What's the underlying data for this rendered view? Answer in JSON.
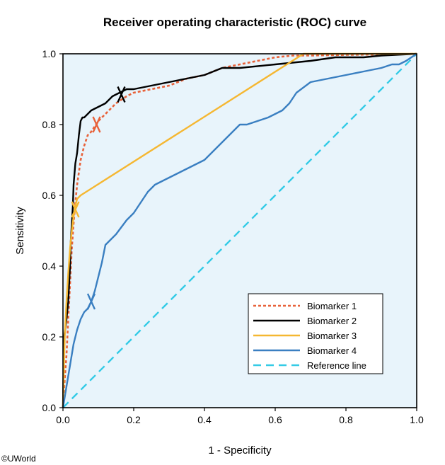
{
  "chart_data": {
    "type": "line",
    "title": "Receiver operating characteristic (ROC) curve",
    "xlabel": "1 - Specificity",
    "ylabel": "Sensitivity",
    "xlim": [
      0,
      1
    ],
    "ylim": [
      0,
      1
    ],
    "xticks": [
      "0.0",
      "0.2",
      "0.4",
      "0.6",
      "0.8",
      "1.0"
    ],
    "yticks": [
      "0.0",
      "0.2",
      "0.4",
      "0.6",
      "0.8",
      "1.0"
    ],
    "grid": false,
    "legend_position": "bottom-right",
    "plot_background": "#e8f4fb",
    "series": [
      {
        "name": "Biomarker 1",
        "color": "#e8623a",
        "style": "dotted",
        "x": [
          0,
          0.005,
          0.01,
          0.015,
          0.02,
          0.025,
          0.03,
          0.035,
          0.04,
          0.05,
          0.06,
          0.07,
          0.08,
          0.1,
          0.12,
          0.15,
          0.18,
          0.2,
          0.25,
          0.3,
          0.35,
          0.4,
          0.45,
          0.5,
          0.55,
          0.6,
          0.65,
          0.7,
          0.8,
          0.9,
          1.0
        ],
        "y": [
          0,
          0.08,
          0.15,
          0.25,
          0.35,
          0.45,
          0.52,
          0.58,
          0.63,
          0.7,
          0.74,
          0.77,
          0.78,
          0.81,
          0.83,
          0.86,
          0.88,
          0.89,
          0.9,
          0.91,
          0.93,
          0.94,
          0.96,
          0.97,
          0.98,
          0.99,
          0.995,
          0.995,
          0.997,
          0.998,
          1.0
        ],
        "marker_x": 0.095,
        "marker_y": 0.8
      },
      {
        "name": "Biomarker 2",
        "color": "#000000",
        "style": "solid",
        "x": [
          0,
          0.003,
          0.006,
          0.01,
          0.015,
          0.02,
          0.022,
          0.025,
          0.028,
          0.03,
          0.035,
          0.04,
          0.045,
          0.05,
          0.055,
          0.06,
          0.07,
          0.08,
          0.1,
          0.12,
          0.14,
          0.16,
          0.18,
          0.2,
          0.25,
          0.3,
          0.35,
          0.4,
          0.45,
          0.5,
          0.6,
          0.7,
          0.77,
          0.85,
          0.9,
          1.0
        ],
        "y": [
          0,
          0.2,
          0.22,
          0.25,
          0.3,
          0.4,
          0.47,
          0.52,
          0.57,
          0.63,
          0.69,
          0.72,
          0.77,
          0.81,
          0.82,
          0.82,
          0.83,
          0.84,
          0.85,
          0.86,
          0.88,
          0.89,
          0.9,
          0.9,
          0.91,
          0.92,
          0.93,
          0.94,
          0.96,
          0.96,
          0.97,
          0.98,
          0.99,
          0.99,
          0.995,
          1.0
        ],
        "marker_x": 0.165,
        "marker_y": 0.885
      },
      {
        "name": "Biomarker 3",
        "color": "#f5b731",
        "style": "solid",
        "x": [
          0,
          0.005,
          0.01,
          0.015,
          0.02,
          0.025,
          0.03,
          0.035,
          0.04,
          0.05,
          0.68,
          0.85,
          1.0
        ],
        "y": [
          0,
          0.2,
          0.3,
          0.38,
          0.45,
          0.5,
          0.54,
          0.57,
          0.59,
          0.6,
          1.0,
          1.0,
          1.0
        ],
        "marker_x": 0.035,
        "marker_y": 0.56
      },
      {
        "name": "Biomarker 4",
        "color": "#3a7fc1",
        "style": "solid",
        "x": [
          0,
          0.01,
          0.02,
          0.03,
          0.04,
          0.05,
          0.06,
          0.07,
          0.08,
          0.09,
          0.1,
          0.11,
          0.12,
          0.15,
          0.18,
          0.2,
          0.22,
          0.24,
          0.26,
          0.28,
          0.3,
          0.32,
          0.34,
          0.36,
          0.38,
          0.4,
          0.42,
          0.44,
          0.46,
          0.48,
          0.5,
          0.52,
          0.55,
          0.58,
          0.6,
          0.62,
          0.64,
          0.66,
          0.7,
          0.75,
          0.8,
          0.85,
          0.9,
          0.93,
          0.95,
          0.97,
          1.0
        ],
        "y": [
          0,
          0.06,
          0.12,
          0.18,
          0.22,
          0.25,
          0.27,
          0.28,
          0.3,
          0.33,
          0.37,
          0.41,
          0.46,
          0.49,
          0.53,
          0.55,
          0.58,
          0.61,
          0.63,
          0.64,
          0.65,
          0.66,
          0.67,
          0.68,
          0.69,
          0.7,
          0.72,
          0.74,
          0.76,
          0.78,
          0.8,
          0.8,
          0.81,
          0.82,
          0.83,
          0.84,
          0.86,
          0.89,
          0.92,
          0.93,
          0.94,
          0.95,
          0.96,
          0.97,
          0.97,
          0.98,
          1.0
        ],
        "marker_x": 0.08,
        "marker_y": 0.3
      },
      {
        "name": "Reference line",
        "color": "#34cbe6",
        "style": "dashed",
        "x": [
          0,
          1
        ],
        "y": [
          0,
          1
        ]
      }
    ]
  },
  "copyright": "©UWorld"
}
